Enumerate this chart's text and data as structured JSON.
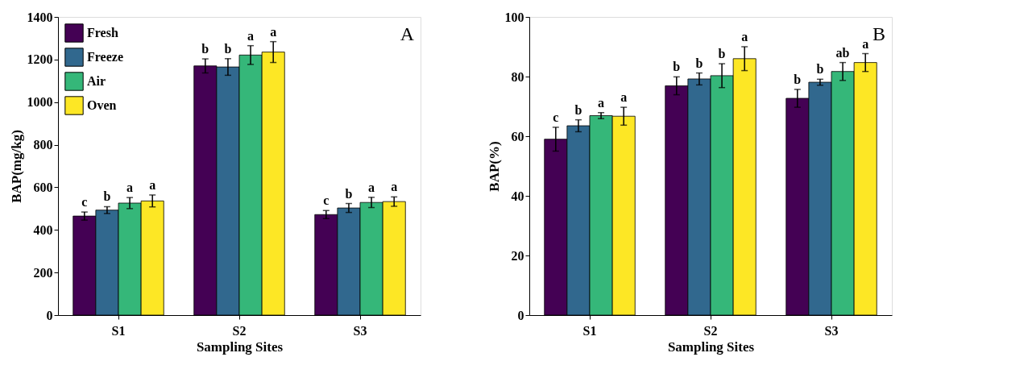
{
  "chart_data": [
    {
      "type": "bar",
      "categories": [
        "S1",
        "S2",
        "S3"
      ],
      "xlabel": "Sampling Sites",
      "ylabel": "BAP(mg/kg)",
      "ylim": [
        0,
        1400
      ],
      "yticks": [
        0,
        200,
        400,
        600,
        800,
        1000,
        1200,
        1400
      ],
      "grid": false,
      "legend": "top left",
      "annotations": [
        "A"
      ],
      "series": [
        {
          "name": "Fresh",
          "color": "#440154",
          "values": [
            465,
            1170,
            472
          ],
          "errors": [
            19,
            33,
            19
          ],
          "value_labels": [
            "c",
            "b",
            "c"
          ]
        },
        {
          "name": "Freeze",
          "color": "#31688e",
          "values": [
            493,
            1165,
            503
          ],
          "errors": [
            16,
            39,
            21
          ],
          "value_labels": [
            "b",
            "b",
            "b"
          ]
        },
        {
          "name": "Air",
          "color": "#35b779",
          "values": [
            526,
            1221,
            529
          ],
          "errors": [
            26,
            44,
            24
          ],
          "value_labels": [
            "a",
            "a",
            "a"
          ]
        },
        {
          "name": "Oven",
          "color": "#fde725",
          "values": [
            536,
            1235,
            533
          ],
          "errors": [
            28,
            49,
            22
          ],
          "value_labels": [
            "a",
            "a",
            "a"
          ]
        }
      ]
    },
    {
      "type": "bar",
      "categories": [
        "S1",
        "S2",
        "S3"
      ],
      "xlabel": "Sampling Sites",
      "ylabel": "BAP(%)",
      "ylim": [
        0,
        100
      ],
      "yticks": [
        0,
        20,
        40,
        60,
        80,
        100
      ],
      "grid": false,
      "legend": "top left",
      "annotations": [
        "B"
      ],
      "series": [
        {
          "name": "Fresh",
          "color": "#440154",
          "values": [
            59.0,
            76.9,
            72.7
          ],
          "errors": [
            4,
            3,
            3
          ],
          "value_labels": [
            "c",
            "b",
            "b"
          ]
        },
        {
          "name": "Freeze",
          "color": "#31688e",
          "values": [
            63.5,
            79.2,
            78.1
          ],
          "errors": [
            2,
            2,
            1
          ],
          "value_labels": [
            "b",
            "b",
            "b"
          ]
        },
        {
          "name": "Air",
          "color": "#35b779",
          "values": [
            66.9,
            80.3,
            81.7
          ],
          "errors": [
            1,
            4,
            3
          ],
          "value_labels": [
            "a",
            "b",
            "ab"
          ]
        },
        {
          "name": "Oven",
          "color": "#fde725",
          "values": [
            66.7,
            86.0,
            84.7
          ],
          "errors": [
            3,
            4,
            3
          ],
          "value_labels": [
            "a",
            "a",
            "a"
          ]
        }
      ]
    }
  ]
}
